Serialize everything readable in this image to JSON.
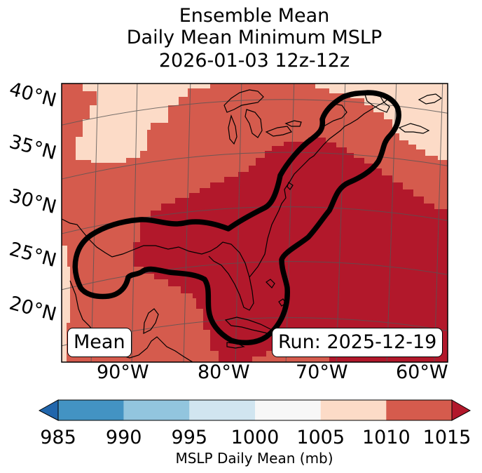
{
  "title": {
    "line1": "Ensemble Mean",
    "line2": "Daily Mean Minimum MSLP",
    "line3": "2026-01-03 12z-12z"
  },
  "map": {
    "latitude_labels": [
      "40°N",
      "35°N",
      "30°N",
      "25°N",
      "20°N"
    ],
    "longitude_labels": [
      "90°W",
      "80°W",
      "70°W",
      "60°W"
    ],
    "mean_label": "Mean",
    "run_label": "Run: 2025-12-19",
    "fill_colors": {
      "band_1005_1010": "#fcdbc7",
      "band_1010_1015": "#d55b4d",
      "over_1015": "#b2182b"
    },
    "contour_color": "#000000",
    "coastline_color": "#000000"
  },
  "colorbar": {
    "ticks": [
      "985",
      "990",
      "995",
      "1000",
      "1005",
      "1010",
      "1015"
    ],
    "segments": [
      {
        "from": 985,
        "to": 990,
        "color": "#4393c3"
      },
      {
        "from": 990,
        "to": 995,
        "color": "#92c5de"
      },
      {
        "from": 995,
        "to": 1000,
        "color": "#d1e5f0"
      },
      {
        "from": 1000,
        "to": 1005,
        "color": "#f7f7f7"
      },
      {
        "from": 1005,
        "to": 1010,
        "color": "#fcdbc7"
      },
      {
        "from": 1010,
        "to": 1015,
        "color": "#d55b4d"
      }
    ],
    "under_color": "#2166ac",
    "over_color": "#b2182b",
    "label": "MSLP Daily Mean (mb)"
  }
}
